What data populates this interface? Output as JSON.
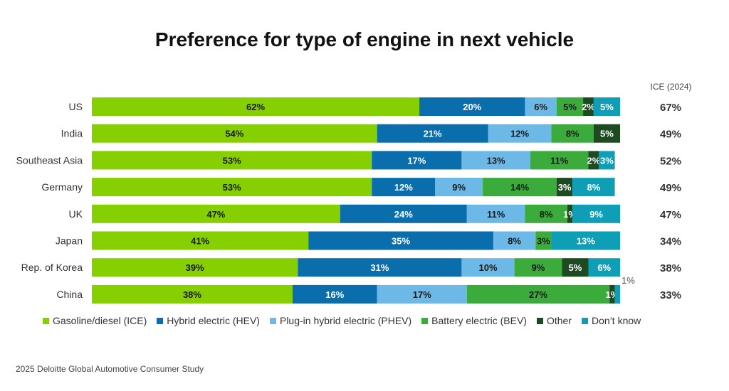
{
  "chart_data": {
    "type": "bar",
    "orientation": "horizontal",
    "stacked": true,
    "title": "Preference for type of engine in next vehicle",
    "extra_column_header": "ICE (2024)",
    "categories": [
      "US",
      "India",
      "Southeast Asia",
      "Germany",
      "UK",
      "Japan",
      "Rep. of Korea",
      "China"
    ],
    "series": [
      {
        "name": "Gasoline/diesel (ICE)",
        "color": "#86cf00",
        "values": [
          62,
          54,
          53,
          53,
          47,
          41,
          39,
          38
        ]
      },
      {
        "name": "Hybrid electric (HEV)",
        "color": "#0a6eac",
        "values": [
          20,
          21,
          17,
          12,
          24,
          35,
          31,
          16
        ]
      },
      {
        "name": "Plug-in hybrid electric (PHEV)",
        "color": "#6cb8e6",
        "values": [
          6,
          12,
          13,
          9,
          11,
          8,
          10,
          17
        ]
      },
      {
        "name": "Battery electric (BEV)",
        "color": "#3bab3b",
        "values": [
          5,
          8,
          11,
          14,
          8,
          3,
          9,
          27
        ]
      },
      {
        "name": "Other",
        "color": "#1e4a22",
        "values": [
          2,
          5,
          2,
          3,
          1,
          0,
          5,
          1
        ]
      },
      {
        "name": "Don’t know",
        "color": "#0e9fb7",
        "values": [
          5,
          0,
          3,
          8,
          9,
          13,
          6,
          1
        ]
      }
    ],
    "data_labels": [
      [
        "62%",
        "20%",
        "6%",
        "5%",
        "2%",
        "5%"
      ],
      [
        "54%",
        "21%",
        "12%",
        "8%",
        "5%",
        ""
      ],
      [
        "53%",
        "17%",
        "13%",
        "11%",
        "2%",
        "3%"
      ],
      [
        "53%",
        "12%",
        "9%",
        "14%",
        "3%",
        "8%"
      ],
      [
        "47%",
        "24%",
        "11%",
        "8%",
        "1%",
        "9%"
      ],
      [
        "41%",
        "35%",
        "8%",
        "3%",
        "",
        "13%"
      ],
      [
        "39%",
        "31%",
        "10%",
        "9%",
        "5%",
        "6%"
      ],
      [
        "38%",
        "16%",
        "17%",
        "27%",
        "1%",
        "1%"
      ]
    ],
    "ice_2024": [
      "67%",
      "49%",
      "52%",
      "49%",
      "47%",
      "34%",
      "38%",
      "33%"
    ],
    "xlim": [
      0,
      100
    ],
    "grid": false,
    "legend_position": "bottom"
  },
  "source": "2025 Deloitte Global Automotive Consumer Study"
}
